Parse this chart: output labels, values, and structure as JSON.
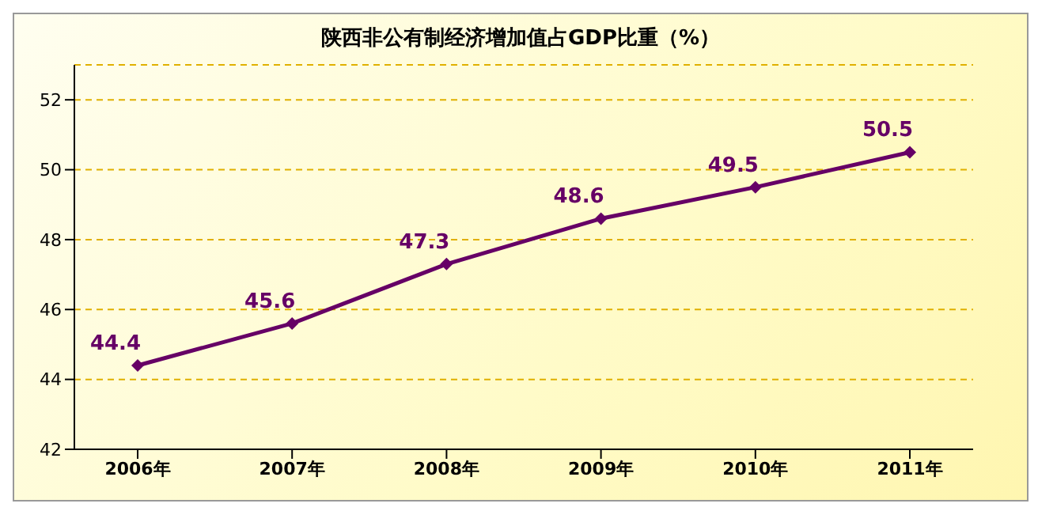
{
  "chart_data": {
    "type": "line",
    "title": "陕西非公有制经济增加值占GDP比重（%）",
    "categories": [
      "2006年",
      "2007年",
      "2008年",
      "2009年",
      "2010年",
      "2011年"
    ],
    "series": [
      {
        "color": "#660066",
        "values": [
          44.4,
          45.6,
          47.3,
          48.6,
          49.5,
          50.5
        ]
      }
    ],
    "ylim": [
      42,
      53
    ],
    "yticks": [
      42,
      44,
      46,
      48,
      50,
      52
    ],
    "grid": "y",
    "marker": "diamond",
    "line_style": "solid",
    "data_labels": true,
    "legend": false
  }
}
